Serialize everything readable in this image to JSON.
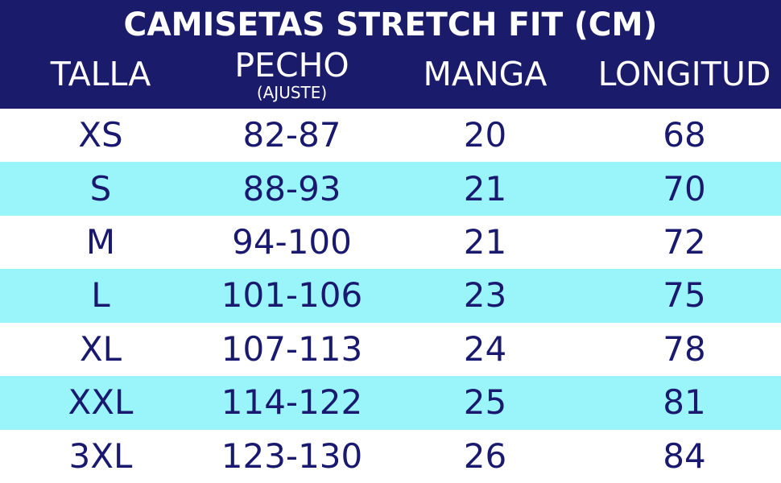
{
  "title": "CAMISETAS STRETCH FIT (CM)",
  "columns": {
    "talla": {
      "label": "TALLA",
      "sublabel": ""
    },
    "pecho": {
      "label": "PECHO",
      "sublabel": "(AJUSTE)"
    },
    "manga": {
      "label": "MANGA",
      "sublabel": ""
    },
    "longitud": {
      "label": "LONGITUD",
      "sublabel": ""
    }
  },
  "rows": [
    {
      "talla": "XS",
      "pecho": "82-87",
      "manga": "20",
      "longitud": "68"
    },
    {
      "talla": "S",
      "pecho": "88-93",
      "manga": "21",
      "longitud": "70"
    },
    {
      "talla": "M",
      "pecho": "94-100",
      "manga": "21",
      "longitud": "72"
    },
    {
      "talla": "L",
      "pecho": "101-106",
      "manga": "23",
      "longitud": "75"
    },
    {
      "talla": "XL",
      "pecho": "107-113",
      "manga": "24",
      "longitud": "78"
    },
    {
      "talla": "XXL",
      "pecho": "114-122",
      "manga": "25",
      "longitud": "81"
    },
    {
      "talla": "3XL",
      "pecho": "123-130",
      "manga": "26",
      "longitud": "84"
    }
  ],
  "colors": {
    "header_bg": "#1b1b6b",
    "header_text": "#ffffff",
    "row_bg": "#ffffff",
    "row_alt_bg": "#9af5fb",
    "data_text": "#191970"
  },
  "chart_data": {
    "type": "table",
    "title": "CAMISETAS STRETCH FIT (CM)",
    "units": "cm",
    "columns": [
      "TALLA",
      "PECHO (AJUSTE)",
      "MANGA",
      "LONGITUD"
    ],
    "rows": [
      [
        "XS",
        "82-87",
        "20",
        "68"
      ],
      [
        "S",
        "88-93",
        "21",
        "70"
      ],
      [
        "M",
        "94-100",
        "21",
        "72"
      ],
      [
        "L",
        "101-106",
        "23",
        "75"
      ],
      [
        "XL",
        "107-113",
        "24",
        "78"
      ],
      [
        "XXL",
        "114-122",
        "25",
        "81"
      ],
      [
        "3XL",
        "123-130",
        "26",
        "84"
      ]
    ],
    "layout": {
      "alternating_row_colors": [
        "#ffffff",
        "#9af5fb"
      ],
      "header_style": "navy banner with white text"
    }
  }
}
